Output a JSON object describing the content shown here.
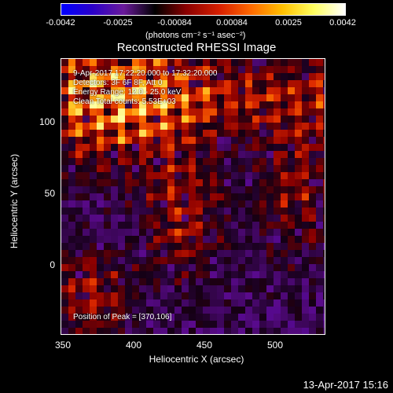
{
  "colorbar": {
    "ticks": [
      "-0.0042",
      "-0.0025",
      "-0.00084",
      "0.00084",
      "0.0025",
      "0.0042"
    ],
    "units": "(photons cm⁻² s⁻¹ asec⁻²)",
    "colors": [
      "#0000ff",
      "#2a00c8",
      "#6a1a9a",
      "#000000",
      "#8a0000",
      "#d82000",
      "#ff6a00",
      "#ffc000",
      "#ffff60",
      "#ffffff"
    ]
  },
  "title": "Reconstructed RHESSI Image",
  "overlay": {
    "line1": "9-Apr-2017 17:22:20.000 to 17:32:20.000",
    "line2": "Detectors: 3F 6F 8F, Att 0",
    "line3": "Energy Range: 12.0 - 25.0 keV",
    "line4": "Clean     Total counts: 5.53E+03",
    "peak": "Position of Peak = [370,106]"
  },
  "axes": {
    "xlabel": "Heliocentric X (arcsec)",
    "ylabel": "Heliocentric Y (arcsec)",
    "xticks": [
      "350",
      "400",
      "450",
      "500"
    ],
    "yticks": [
      "100",
      "50",
      "0"
    ]
  },
  "timestamp": "13-Apr-2017 15:16"
}
